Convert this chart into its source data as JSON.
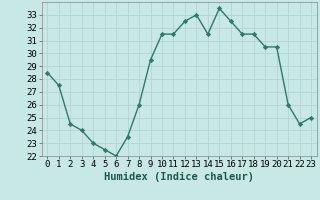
{
  "x": [
    0,
    1,
    2,
    3,
    4,
    5,
    6,
    7,
    8,
    9,
    10,
    11,
    12,
    13,
    14,
    15,
    16,
    17,
    18,
    19,
    20,
    21,
    22,
    23
  ],
  "y": [
    28.5,
    27.5,
    24.5,
    24.0,
    23.0,
    22.5,
    22.0,
    23.5,
    26.0,
    29.5,
    31.5,
    31.5,
    32.5,
    33.0,
    31.5,
    33.5,
    32.5,
    31.5,
    31.5,
    30.5,
    30.5,
    26.0,
    24.5,
    25.0
  ],
  "line_color": "#2d7a6a",
  "marker": "D",
  "marker_size": 2.2,
  "bg_color": "#c8e8e5",
  "grid_color": "#b0d0cc",
  "xlabel": "Humidex (Indice chaleur)",
  "xlim": [
    -0.5,
    23.5
  ],
  "ylim": [
    22,
    34
  ],
  "yticks": [
    22,
    23,
    24,
    25,
    26,
    27,
    28,
    29,
    30,
    31,
    32,
    33
  ],
  "xticks": [
    0,
    1,
    2,
    3,
    4,
    5,
    6,
    7,
    8,
    9,
    10,
    11,
    12,
    13,
    14,
    15,
    16,
    17,
    18,
    19,
    20,
    21,
    22,
    23
  ],
  "xlabel_fontsize": 7.5,
  "tick_fontsize": 6.5,
  "line_width": 1.0
}
